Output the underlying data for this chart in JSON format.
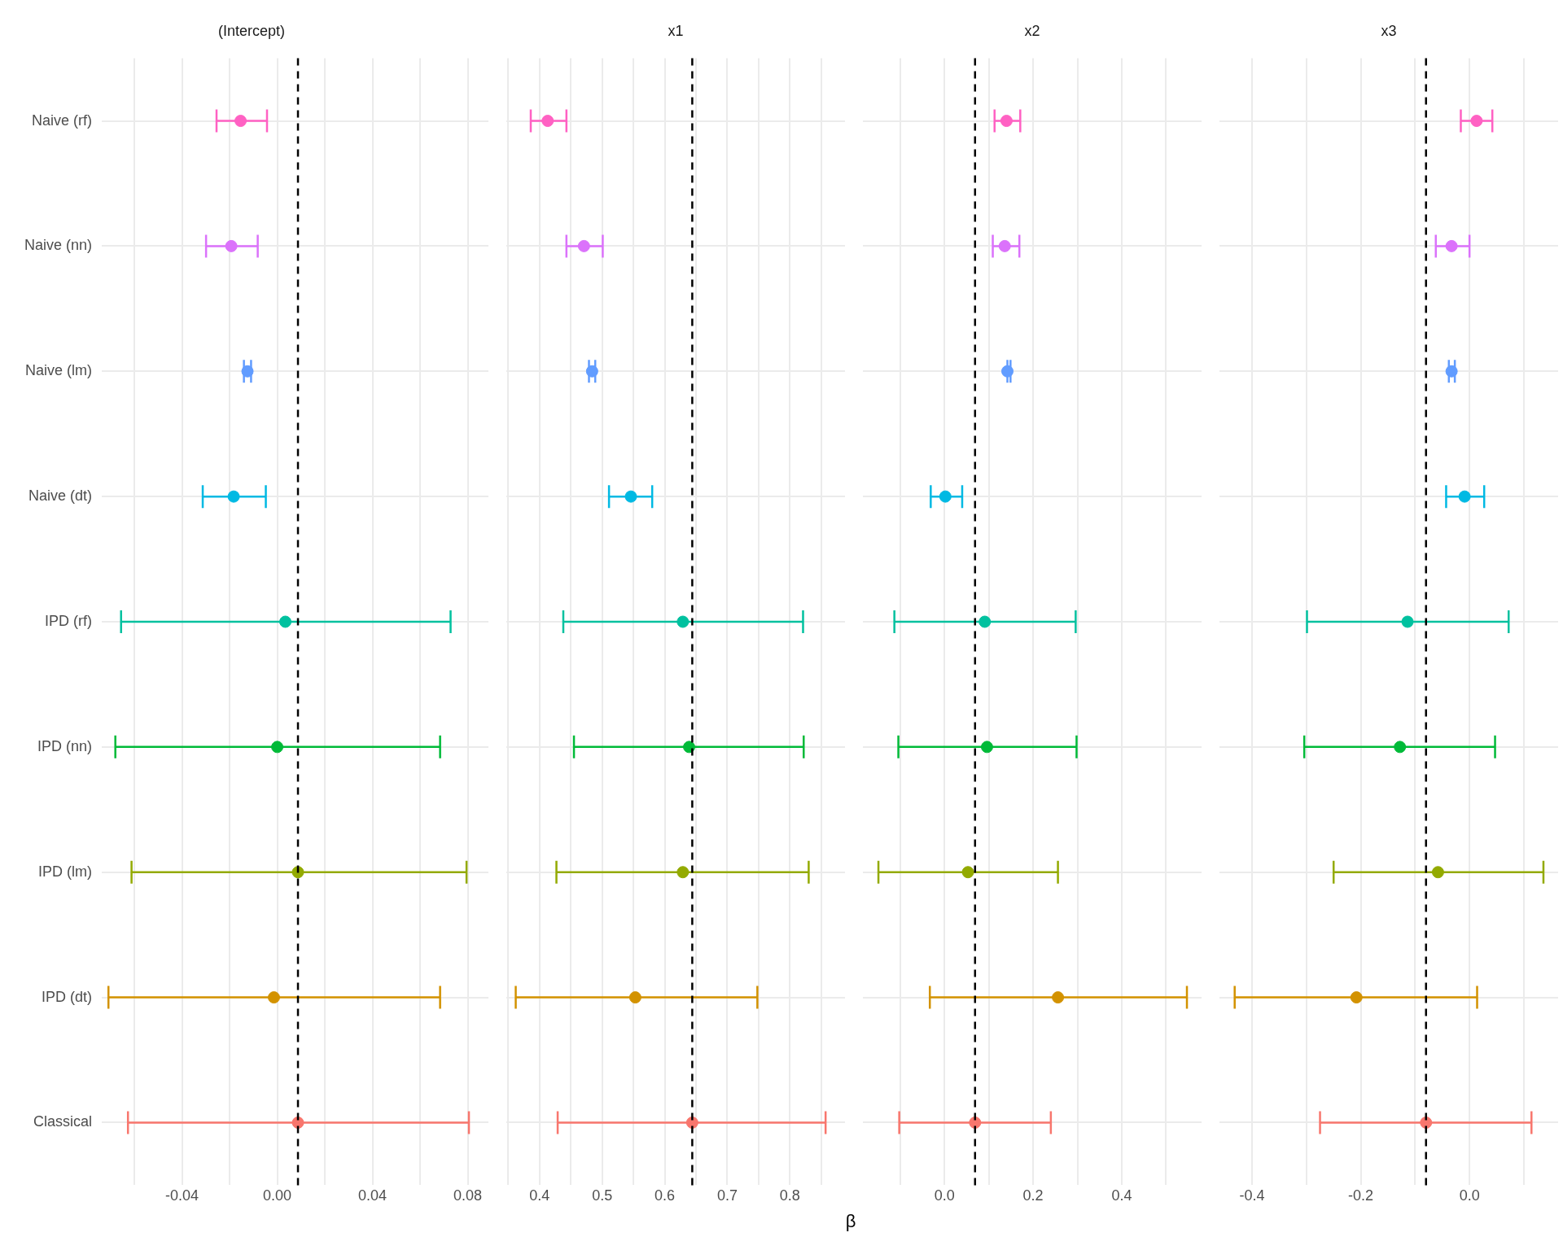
{
  "chart_data": [
    {
      "type": "scatter",
      "orientation": "horizontal",
      "title": "(Intercept)",
      "categories": [
        "Naive (rf)",
        "Naive (nn)",
        "Naive (lm)",
        "Naive (dt)",
        "IPD (rf)",
        "IPD (nn)",
        "IPD (lm)",
        "IPD (dt)",
        "Classical"
      ],
      "values": [
        -0.0154,
        -0.0193,
        -0.0125,
        -0.0183,
        0.0034,
        0.0,
        0.0087,
        -0.0014,
        0.0087
      ],
      "errors": [
        [
          -0.0255,
          -0.0043
        ],
        [
          -0.0299,
          -0.0082
        ],
        [
          -0.014,
          -0.011
        ],
        [
          -0.0313,
          -0.0048
        ],
        [
          -0.0656,
          0.0728
        ],
        [
          -0.068,
          0.0684
        ],
        [
          -0.0612,
          0.0795
        ],
        [
          -0.0709,
          0.0684
        ],
        [
          -0.0627,
          0.0805
        ]
      ],
      "colors": [
        "#ff61c3",
        "#db72fb",
        "#619cff",
        "#00b9e3",
        "#00c19f",
        "#00ba38",
        "#93aa00",
        "#d39200",
        "#f8766d"
      ],
      "xlim": [
        -0.0737,
        0.0887
      ],
      "xticks": [
        {
          "value": -0.06,
          "label": null
        },
        {
          "value": -0.04,
          "label": "-0.04"
        },
        {
          "value": -0.02,
          "label": null
        },
        {
          "value": 0,
          "label": "0.00"
        },
        {
          "value": 0.02,
          "label": null
        },
        {
          "value": 0.04,
          "label": "0.04"
        },
        {
          "value": 0.06,
          "label": null
        },
        {
          "value": 0.08,
          "label": "0.08"
        }
      ],
      "ref_lines": [
        {
          "axis": "x",
          "value": 0.0087,
          "color": "#000000",
          "line_style": "dashed"
        }
      ],
      "grid": true,
      "marker": "circle"
    },
    {
      "type": "scatter",
      "orientation": "horizontal",
      "title": "x1",
      "xlabel": "β",
      "values": [
        0.413,
        0.471,
        0.484,
        0.546,
        0.629,
        0.639,
        0.629,
        0.553,
        0.644
      ],
      "errors": [
        [
          0.386,
          0.443
        ],
        [
          0.443,
          0.501
        ],
        [
          0.479,
          0.489
        ],
        [
          0.511,
          0.58
        ],
        [
          0.438,
          0.821
        ],
        [
          0.455,
          0.822
        ],
        [
          0.427,
          0.83
        ],
        [
          0.362,
          0.748
        ],
        [
          0.429,
          0.857
        ]
      ],
      "colors": [
        "#ff61c3",
        "#db72fb",
        "#619cff",
        "#00b9e3",
        "#00c19f",
        "#00ba38",
        "#93aa00",
        "#d39200",
        "#f8766d"
      ],
      "xlim": [
        0.347,
        0.888
      ],
      "xticks": [
        {
          "value": 0.35,
          "label": null
        },
        0.4,
        {
          "value": 0.45,
          "label": null
        },
        0.5,
        {
          "value": 0.55,
          "label": null
        },
        0.6,
        {
          "value": 0.65,
          "label": null
        },
        0.7,
        {
          "value": 0.75,
          "label": null
        },
        0.8,
        {
          "value": 0.85,
          "label": null
        }
      ],
      "ref_lines": [
        {
          "axis": "x",
          "value": 0.644,
          "color": "#000000",
          "line_style": "dashed"
        }
      ],
      "grid": true,
      "marker": "circle",
      "tick_labels": "x"
    },
    {
      "type": "scatter",
      "orientation": "horizontal",
      "title": "x2",
      "values": [
        0.14,
        0.136,
        0.142,
        0.002,
        0.091,
        0.096,
        0.053,
        0.256,
        0.069
      ],
      "errors": [
        [
          0.113,
          0.171
        ],
        [
          0.109,
          0.169
        ],
        [
          0.142,
          0.149
        ],
        [
          -0.031,
          0.04
        ],
        [
          -0.113,
          0.296
        ],
        [
          -0.104,
          0.298
        ],
        [
          -0.149,
          0.256
        ],
        [
          -0.033,
          0.547
        ],
        [
          -0.102,
          0.24
        ]
      ],
      "colors": [
        "#ff61c3",
        "#db72fb",
        "#619cff",
        "#00b9e3",
        "#00c19f",
        "#00ba38",
        "#93aa00",
        "#d39200",
        "#f8766d"
      ],
      "xlim": [
        -0.184,
        0.58
      ],
      "xticks": [
        {
          "value": -0.1,
          "label": null
        },
        {
          "value": 0,
          "label": "0.0"
        },
        {
          "value": 0.1,
          "label": null
        },
        0.2,
        {
          "value": 0.3,
          "label": null
        },
        0.4,
        {
          "value": 0.5,
          "label": null
        }
      ],
      "ref_lines": [
        {
          "axis": "x",
          "value": 0.069,
          "color": "#000000",
          "line_style": "dashed"
        }
      ],
      "grid": true,
      "marker": "circle",
      "tick_labels": "x"
    },
    {
      "type": "scatter",
      "orientation": "horizontal",
      "title": "x3",
      "values": [
        0.013,
        -0.033,
        -0.033,
        -0.009,
        -0.114,
        -0.128,
        -0.058,
        -0.208,
        -0.08
      ],
      "errors": [
        [
          -0.016,
          0.042
        ],
        [
          -0.062,
          0.0
        ],
        [
          -0.038,
          -0.027
        ],
        [
          -0.043,
          0.027
        ],
        [
          -0.299,
          0.072
        ],
        [
          -0.304,
          0.047
        ],
        [
          -0.25,
          0.136
        ],
        [
          -0.432,
          0.014
        ],
        [
          -0.275,
          0.114
        ]
      ],
      "colors": [
        "#ff61c3",
        "#db72fb",
        "#619cff",
        "#00b9e3",
        "#00c19f",
        "#00ba38",
        "#93aa00",
        "#d39200",
        "#f8766d"
      ],
      "xlim": [
        -0.46,
        0.163
      ],
      "xticks": [
        -0.4,
        {
          "value": -0.3,
          "label": null
        },
        -0.2,
        {
          "value": -0.1,
          "label": null
        },
        {
          "value": 0,
          "label": "0.0"
        },
        {
          "value": 0.1,
          "label": null
        }
      ],
      "ref_lines": [
        {
          "axis": "x",
          "value": -0.08,
          "color": "#000000",
          "line_style": "dashed"
        }
      ],
      "grid": true,
      "marker": "circle",
      "tick_labels": "x"
    }
  ]
}
